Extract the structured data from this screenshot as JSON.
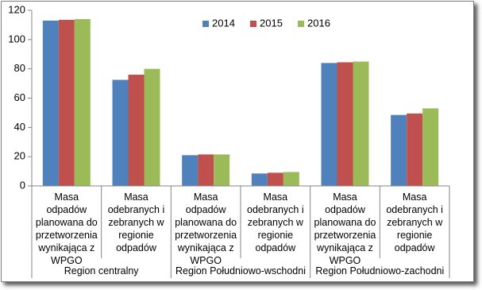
{
  "chart_data": {
    "type": "bar",
    "categories": [
      "Masa odpadów planowana do przetworzenia wynikająca z WPGO",
      "Masa odebranych i zebranych w regionie odpadów",
      "Masa odpadów planowana do przetworzenia wynikająca z WPGO",
      "Masa odebranych i zebranych w regionie odpadów",
      "Masa odpadów planowana do przetworzenia wynikająca z WPGO",
      "Masa odebranych i zebranych w regionie odpadów"
    ],
    "groups": [
      "Region centralny",
      "Region Południowo-wschodni",
      "Region Południowo-zachodni"
    ],
    "series": [
      {
        "name": "2014",
        "color": "#4f81bd",
        "values": [
          113,
          72.5,
          21,
          8.5,
          84,
          48.5
        ]
      },
      {
        "name": "2015",
        "color": "#c0504d",
        "values": [
          113.5,
          76,
          21.5,
          9,
          84.5,
          49.5
        ]
      },
      {
        "name": "2016",
        "color": "#9bbb59",
        "values": [
          114,
          80,
          21.5,
          9.5,
          85,
          53
        ]
      }
    ],
    "ylim": [
      0,
      120
    ],
    "yticks": [
      0,
      20,
      40,
      60,
      80,
      100,
      120
    ],
    "grid": false,
    "legend": "top"
  }
}
